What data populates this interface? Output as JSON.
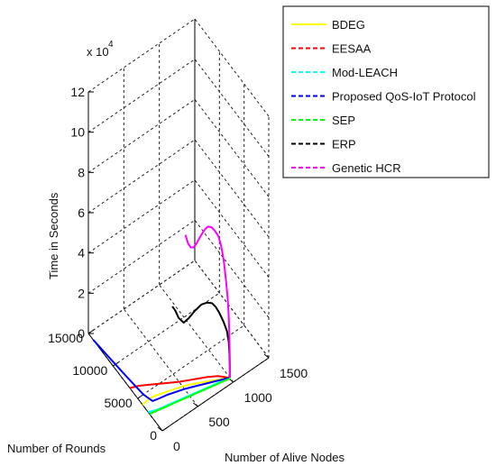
{
  "chart_data": {
    "type": "line",
    "projection": "3d",
    "title": "",
    "multiplier_label": "x 10",
    "multiplier_exponent": "4",
    "xlabel": "Number of Alive Nodes",
    "ylabel": "Number of Rounds",
    "zlabel": "Time in Seconds",
    "xlim": [
      0,
      1500
    ],
    "ylim": [
      0,
      15000
    ],
    "zlim": [
      0,
      12
    ],
    "x_ticks": [
      "0",
      "500",
      "1000",
      "1500"
    ],
    "y_ticks": [
      "0",
      "5000",
      "10000",
      "15000"
    ],
    "z_ticks": [
      "0",
      "2",
      "4",
      "6",
      "8",
      "10",
      "12"
    ],
    "grid": true,
    "legend_position": "top-right",
    "series": [
      {
        "name": "BDEG",
        "color": "#ffff00",
        "points": [
          [
            1000,
            800,
            0
          ],
          [
            900,
            1200,
            0
          ],
          [
            800,
            1700,
            0
          ],
          [
            700,
            2200,
            0
          ],
          [
            600,
            2700,
            0
          ],
          [
            500,
            3100,
            0
          ],
          [
            400,
            3400,
            0
          ],
          [
            300,
            3700,
            0
          ],
          [
            200,
            4000,
            0
          ],
          [
            120,
            4200,
            0
          ],
          [
            60,
            4100,
            0
          ],
          [
            0,
            4000,
            0
          ]
        ]
      },
      {
        "name": "EESAA",
        "color": "#ff0000",
        "points": [
          [
            1000,
            600,
            0
          ],
          [
            950,
            1200,
            0
          ],
          [
            900,
            1700,
            0
          ],
          [
            800,
            2300,
            0
          ],
          [
            700,
            2800,
            0
          ],
          [
            600,
            3300,
            0
          ],
          [
            500,
            3800,
            0
          ],
          [
            400,
            4400,
            0
          ],
          [
            300,
            5000,
            0
          ],
          [
            200,
            5600,
            0
          ],
          [
            100,
            6200,
            0
          ],
          [
            0,
            6600,
            0
          ]
        ]
      },
      {
        "name": "Mod-LEACH",
        "color": "#00ffff",
        "points": [
          [
            1000,
            700,
            0
          ],
          [
            900,
            900,
            0
          ],
          [
            800,
            1100,
            0
          ],
          [
            700,
            1300,
            0
          ],
          [
            600,
            1500,
            0
          ],
          [
            500,
            1700,
            0
          ],
          [
            400,
            1900,
            0
          ],
          [
            300,
            2100,
            0
          ],
          [
            200,
            2300,
            0
          ],
          [
            100,
            2500,
            0
          ],
          [
            50,
            2700,
            0
          ],
          [
            0,
            2900,
            0
          ]
        ]
      },
      {
        "name": "Proposed QoS-IoT Protocol",
        "color": "#0000ff",
        "points": [
          [
            1000,
            700,
            0
          ],
          [
            900,
            1100,
            0
          ],
          [
            800,
            1500,
            0
          ],
          [
            700,
            1900,
            0
          ],
          [
            600,
            2300,
            0
          ],
          [
            500,
            2700,
            0
          ],
          [
            400,
            3000,
            0
          ],
          [
            300,
            3300,
            0
          ],
          [
            200,
            3500,
            0
          ],
          [
            120,
            3700,
            0
          ],
          [
            80,
            5000,
            0
          ],
          [
            50,
            8000,
            0
          ],
          [
            25,
            11000,
            0
          ],
          [
            0,
            14000,
            0
          ]
        ]
      },
      {
        "name": "SEP",
        "color": "#00ff00",
        "points": [
          [
            1000,
            600,
            0
          ],
          [
            900,
            800,
            0
          ],
          [
            800,
            1000,
            0
          ],
          [
            700,
            1200,
            0
          ],
          [
            600,
            1400,
            0
          ],
          [
            500,
            1600,
            0
          ],
          [
            400,
            1800,
            0
          ],
          [
            300,
            2000,
            0
          ],
          [
            200,
            2200,
            0
          ],
          [
            100,
            2400,
            0
          ],
          [
            50,
            2500,
            0
          ],
          [
            0,
            2600,
            0
          ]
        ]
      },
      {
        "name": "ERP",
        "color": "#000000",
        "points": [
          [
            1000,
            700,
            0
          ],
          [
            1000,
            700,
            0.6
          ],
          [
            995,
            700,
            1.2
          ],
          [
            985,
            700,
            1.8
          ],
          [
            960,
            700,
            2.4
          ],
          [
            910,
            700,
            3.0
          ],
          [
            850,
            700,
            3.6
          ],
          [
            800,
            700,
            4.0
          ],
          [
            750,
            700,
            4.3
          ],
          [
            680,
            700,
            4.5
          ],
          [
            600,
            700,
            4.6
          ],
          [
            500,
            700,
            4.5
          ],
          [
            420,
            700,
            4.35
          ],
          [
            350,
            700,
            4.3
          ],
          [
            280,
            700,
            4.7
          ],
          [
            230,
            700,
            5.2
          ],
          [
            190,
            700,
            5.5
          ]
        ]
      },
      {
        "name": "Genetic HCR",
        "color": "#ff00ff",
        "points": [
          [
            1000,
            700,
            0
          ],
          [
            1000,
            700,
            1.0
          ],
          [
            995,
            700,
            2.0
          ],
          [
            985,
            700,
            3.0
          ],
          [
            970,
            700,
            4.0
          ],
          [
            945,
            700,
            5.0
          ],
          [
            915,
            700,
            6.0
          ],
          [
            880,
            700,
            6.8
          ],
          [
            840,
            700,
            7.4
          ],
          [
            790,
            700,
            7.8
          ],
          [
            740,
            700,
            8.1
          ],
          [
            690,
            700,
            8.25
          ],
          [
            640,
            700,
            8.2
          ],
          [
            580,
            700,
            8.0
          ],
          [
            530,
            700,
            7.8
          ],
          [
            490,
            700,
            7.7
          ],
          [
            450,
            700,
            7.8
          ],
          [
            410,
            700,
            8.1
          ],
          [
            375,
            700,
            8.6
          ]
        ]
      }
    ]
  }
}
